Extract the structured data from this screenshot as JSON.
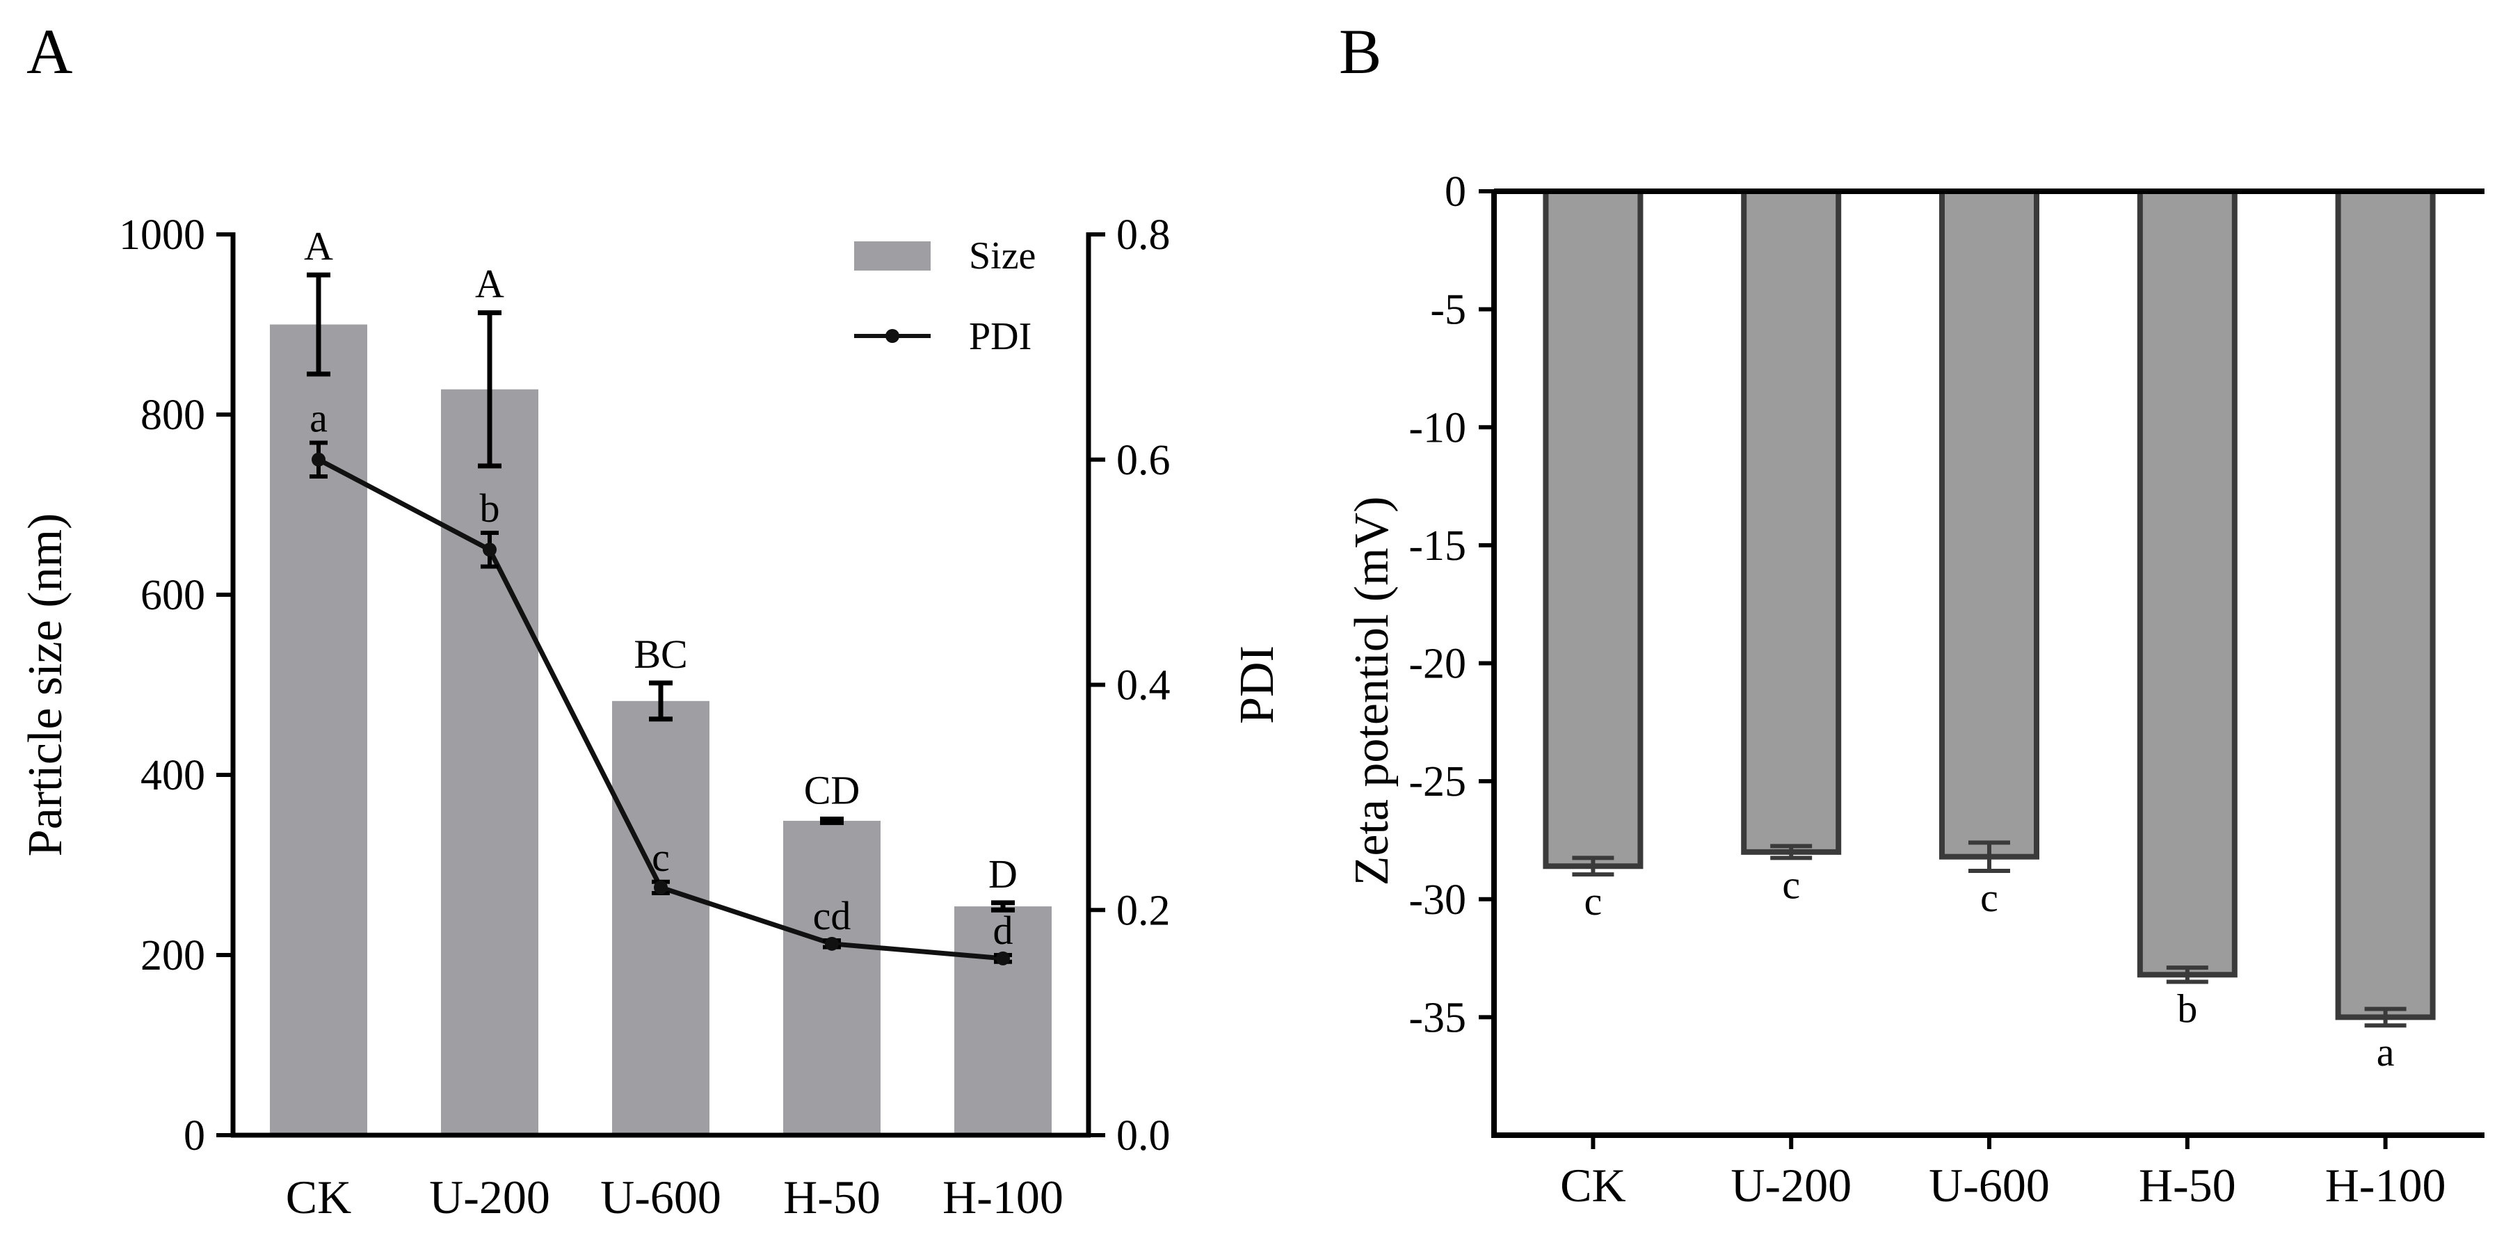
{
  "panels": {
    "a": {
      "letter": "A"
    },
    "b": {
      "letter": "B"
    }
  },
  "colors": {
    "bar_a": "#9e9ea3",
    "bar_b": "#9c9c9c",
    "bar_b_edge": "#3a3a3a",
    "line": "#111111"
  },
  "chart_data": [
    {
      "type": "bar+line",
      "title": "",
      "categories": [
        "CK",
        "U-200",
        "U-600",
        "H-50",
        "H-100"
      ],
      "series": [
        {
          "name": "Size",
          "kind": "bar",
          "axis": "left",
          "values": [
            900,
            828,
            482,
            349,
            254
          ],
          "errors": [
            55,
            85,
            20,
            2,
            4
          ],
          "labels": [
            "A",
            "A",
            "BC",
            "CD",
            "D"
          ]
        },
        {
          "name": "PDI",
          "kind": "line",
          "axis": "right",
          "values": [
            0.6,
            0.52,
            0.22,
            0.17,
            0.157
          ],
          "errors": [
            0.015,
            0.015,
            0.005,
            0.003,
            0.003
          ],
          "labels": [
            "a",
            "b",
            "c",
            "cd",
            "d"
          ]
        }
      ],
      "ylabel": "Particle size (nm)",
      "ylim": [
        0,
        1000
      ],
      "yticks": [
        0,
        200,
        400,
        600,
        800,
        1000
      ],
      "y2label": "PDI",
      "y2lim": [
        0.0,
        0.8
      ],
      "y2ticks": [
        "0.0",
        "0.2",
        "0.4",
        "0.6",
        "0.8"
      ],
      "legend": {
        "position": "top-right",
        "entries": [
          "Size",
          "PDI"
        ]
      }
    },
    {
      "type": "bar",
      "title": "",
      "categories": [
        "CK",
        "U-200",
        "U-600",
        "H-50",
        "H-100"
      ],
      "values": [
        -28.6,
        -28.0,
        -28.2,
        -33.2,
        -35.0
      ],
      "errors": [
        0.35,
        0.25,
        0.6,
        0.3,
        0.35
      ],
      "labels": [
        "c",
        "c",
        "c",
        "b",
        "a"
      ],
      "ylabel": "Zeta potentiol (mV)",
      "ylim": [
        -40,
        0
      ],
      "yticks": [
        0,
        -5,
        -10,
        -15,
        -20,
        -25,
        -30,
        -35
      ]
    }
  ]
}
